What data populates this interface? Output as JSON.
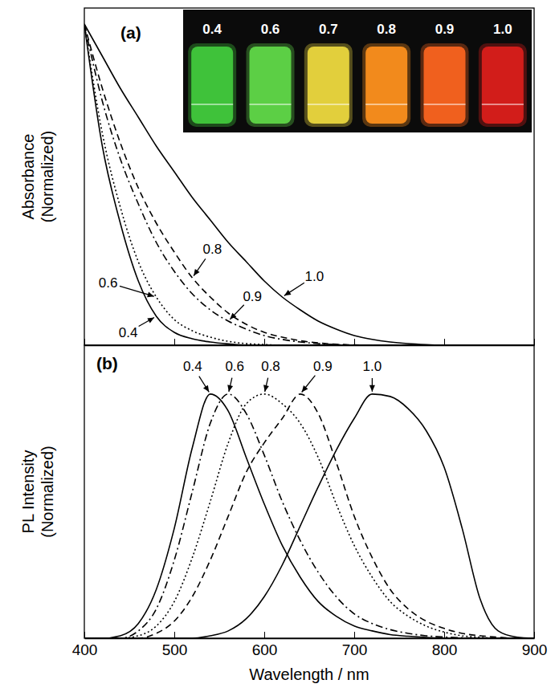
{
  "chart_data": [
    {
      "type": "line",
      "title": "(a)",
      "y_label": "Absorbance (Normalized)",
      "x": [
        400,
        420,
        440,
        460,
        480,
        500,
        520,
        540,
        560,
        580,
        600,
        620,
        640,
        660,
        680,
        700,
        720,
        740,
        760,
        780,
        800,
        820,
        840,
        860,
        880,
        900
      ],
      "xlim": [
        400,
        900
      ],
      "xticks": [
        400,
        500,
        600,
        700,
        800,
        900
      ],
      "ylim": [
        0,
        1.05
      ],
      "tick_labels": false,
      "grid": false,
      "inset": {
        "labels": [
          "0.4",
          "0.6",
          "0.7",
          "0.8",
          "0.9",
          "1.0"
        ],
        "colors": [
          "#3fc23a",
          "#5ccf45",
          "#e2cf3c",
          "#f28a1c",
          "#f0601e",
          "#d21d1a"
        ]
      },
      "series": [
        {
          "name": "0.4",
          "color": "#000000",
          "line_style": "solid",
          "values": [
            1.0,
            0.62,
            0.38,
            0.2,
            0.09,
            0.04,
            0.02,
            0.01,
            0.004,
            0,
            0,
            0,
            0,
            0,
            0,
            0,
            0,
            0,
            0,
            0,
            0,
            0,
            0,
            0,
            0,
            0
          ]
        },
        {
          "name": "0.6",
          "color": "#000000",
          "line_style": "dotted",
          "values": [
            1.0,
            0.66,
            0.43,
            0.26,
            0.15,
            0.08,
            0.045,
            0.025,
            0.012,
            0.005,
            0.002,
            0,
            0,
            0,
            0,
            0,
            0,
            0,
            0,
            0,
            0,
            0,
            0,
            0,
            0,
            0
          ]
        },
        {
          "name": "0.8",
          "color": "#000000",
          "line_style": "dashed",
          "values": [
            1.0,
            0.8,
            0.63,
            0.49,
            0.38,
            0.29,
            0.21,
            0.15,
            0.1,
            0.065,
            0.04,
            0.025,
            0.014,
            0.007,
            0.003,
            0.001,
            0,
            0,
            0,
            0,
            0,
            0,
            0,
            0,
            0,
            0
          ]
        },
        {
          "name": "0.9",
          "color": "#000000",
          "line_style": "dashdot",
          "values": [
            1.0,
            0.76,
            0.58,
            0.44,
            0.32,
            0.23,
            0.16,
            0.11,
            0.075,
            0.05,
            0.03,
            0.018,
            0.01,
            0.005,
            0.002,
            0,
            0,
            0,
            0,
            0,
            0,
            0,
            0,
            0,
            0,
            0
          ]
        },
        {
          "name": "1.0",
          "color": "#000000",
          "line_style": "solid",
          "values": [
            1.0,
            0.9,
            0.8,
            0.71,
            0.62,
            0.54,
            0.46,
            0.39,
            0.32,
            0.26,
            0.2,
            0.15,
            0.11,
            0.075,
            0.05,
            0.03,
            0.018,
            0.01,
            0.005,
            0.002,
            0,
            0,
            0,
            0,
            0,
            0
          ]
        }
      ]
    },
    {
      "type": "line",
      "title": "(b)",
      "x_label": "Wavelength / nm",
      "y_label": "PL Intensity (Normalized)",
      "x": [
        400,
        420,
        440,
        460,
        480,
        500,
        520,
        540,
        560,
        580,
        600,
        620,
        640,
        660,
        680,
        700,
        720,
        740,
        760,
        780,
        800,
        820,
        840,
        860,
        880,
        900
      ],
      "xlim": [
        400,
        900
      ],
      "xticks": [
        400,
        500,
        600,
        700,
        800,
        900
      ],
      "ylim": [
        0,
        1.2
      ],
      "tick_labels": "x",
      "grid": false,
      "series": [
        {
          "name": "0.4",
          "color": "#000000",
          "line_style": "solid",
          "values": [
            0,
            0,
            0.01,
            0.06,
            0.2,
            0.45,
            0.78,
            1.0,
            0.93,
            0.74,
            0.55,
            0.38,
            0.25,
            0.15,
            0.09,
            0.05,
            0.03,
            0.015,
            0.008,
            0.003,
            0,
            0,
            0,
            0,
            0,
            0
          ]
        },
        {
          "name": "0.6",
          "color": "#000000",
          "line_style": "dashdot",
          "values": [
            0,
            0,
            0,
            0.03,
            0.12,
            0.32,
            0.6,
            0.88,
            1.0,
            0.92,
            0.75,
            0.56,
            0.4,
            0.27,
            0.17,
            0.1,
            0.06,
            0.035,
            0.02,
            0.01,
            0.005,
            0.002,
            0,
            0,
            0,
            0
          ]
        },
        {
          "name": "0.8",
          "color": "#000000",
          "line_style": "dotted",
          "values": [
            0,
            0,
            0,
            0.01,
            0.05,
            0.15,
            0.33,
            0.56,
            0.8,
            0.96,
            1.0,
            0.96,
            0.88,
            0.74,
            0.55,
            0.38,
            0.25,
            0.15,
            0.09,
            0.05,
            0.025,
            0.01,
            0.004,
            0,
            0,
            0
          ]
        },
        {
          "name": "0.9",
          "color": "#000000",
          "line_style": "dashed",
          "values": [
            0,
            0,
            0,
            0,
            0.02,
            0.07,
            0.17,
            0.32,
            0.5,
            0.68,
            0.8,
            0.9,
            1.0,
            0.92,
            0.72,
            0.5,
            0.33,
            0.2,
            0.12,
            0.07,
            0.04,
            0.02,
            0.01,
            0.004,
            0,
            0
          ]
        },
        {
          "name": "1.0",
          "color": "#000000",
          "line_style": "solid",
          "values": [
            0,
            0,
            0,
            0,
            0,
            0,
            0,
            0.01,
            0.03,
            0.08,
            0.17,
            0.3,
            0.46,
            0.62,
            0.77,
            0.9,
            1.0,
            0.99,
            0.94,
            0.85,
            0.7,
            0.45,
            0.16,
            0.03,
            0.005,
            0
          ]
        }
      ]
    }
  ]
}
